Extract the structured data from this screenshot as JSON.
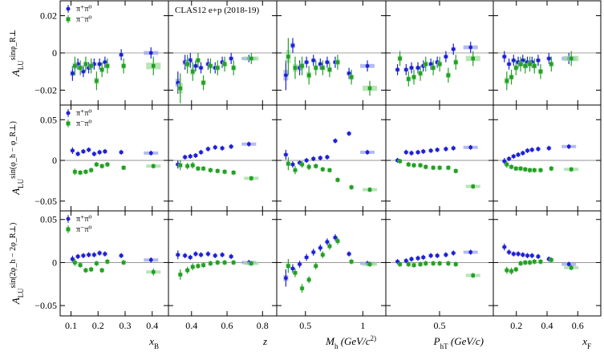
{
  "chart_data": {
    "type": "scatter",
    "title": "CLAS12 e+p (2018-19)",
    "series_names": [
      "π+π0",
      "π−π0"
    ],
    "series_colors": [
      "#1f1fd6",
      "#23a023"
    ],
    "band_colors": [
      "#9aa4ee",
      "#9fdc9f"
    ],
    "legend_labels": [
      "π⁺π⁰",
      "π⁻π⁰"
    ],
    "columns": [
      {
        "id": "xB",
        "xlabel": "x_B",
        "xlim": [
          0.06,
          0.46
        ],
        "xticks": [
          0.1,
          0.2,
          0.3,
          0.4
        ],
        "xtick_labels": [
          "0.1",
          "0.2",
          "0.3",
          "0.4"
        ]
      },
      {
        "id": "z",
        "xlabel": "z",
        "xlim": [
          0.27,
          0.88
        ],
        "xticks": [
          0.4,
          0.6,
          0.8
        ],
        "xtick_labels": [
          "0.4",
          "0.6",
          "0.8"
        ]
      },
      {
        "id": "Mh",
        "xlabel": "M_h (GeV/c^2)",
        "xlim": [
          0.25,
          1.2
        ],
        "xticks": [
          0.5,
          1.0
        ],
        "xtick_labels": [
          "0.5",
          "1"
        ]
      },
      {
        "id": "PhT",
        "xlabel": "P_hT (GeV/c)",
        "xlim": [
          0.0,
          1.0
        ],
        "xticks": [
          0.5
        ],
        "xtick_labels": [
          "0.5"
        ]
      },
      {
        "id": "xF",
        "xlabel": "x_F",
        "xlim": [
          0.05,
          0.75
        ],
        "xticks": [
          0.2,
          0.4,
          0.6
        ],
        "xtick_labels": [
          "0.2",
          "0.4",
          "0.6"
        ]
      }
    ],
    "rows": [
      {
        "id": "sin_phiR",
        "ylabel_main": "A",
        "ylabel_sub": "LU",
        "ylabel_sup": "sinφ_R⊥",
        "ylim": [
          -0.028,
          0.028
        ],
        "yticks": [
          -0.02,
          0,
          0.02
        ],
        "ytick_labels": [
          "−0.02",
          "0",
          "0.02"
        ]
      },
      {
        "id": "sin_phih_minus_phiR",
        "ylabel_main": "A",
        "ylabel_sub": "LU",
        "ylabel_sup": "sin(φ_h − φ_R⊥)",
        "ylim": [
          -0.062,
          0.068
        ],
        "yticks": [
          -0.05,
          0,
          0.05
        ],
        "ytick_labels": [
          "−0.05",
          "0",
          "0.05"
        ]
      },
      {
        "id": "sin_2phih_minus_2phiR",
        "ylabel_main": "A",
        "ylabel_sub": "LU",
        "ylabel_sup": "sin(2φ_h − 2φ_R⊥)",
        "ylim": [
          -0.062,
          0.06
        ],
        "yticks": [
          -0.05,
          0,
          0.05
        ],
        "ytick_labels": [
          "−0.05",
          "0",
          "0.05"
        ]
      }
    ],
    "panels": [
      [
        {
          "x": [
            0.11,
            0.13,
            0.15,
            0.17,
            0.19,
            0.21,
            0.23,
            0.29,
            0.4
          ],
          "s1": [
            -0.011,
            -0.006,
            -0.01,
            -0.008,
            -0.006,
            -0.006,
            -0.005,
            -0.001,
            0.0
          ],
          "e1": [
            0.004,
            0.003,
            0.003,
            0.003,
            0.003,
            0.003,
            0.003,
            0.003,
            0.003
          ],
          "s2": [
            -0.007,
            -0.008,
            -0.006,
            -0.007,
            -0.015,
            -0.009,
            -0.007,
            -0.007,
            -0.007
          ],
          "e2": [
            0.005,
            0.004,
            0.004,
            0.004,
            0.005,
            0.004,
            0.004,
            0.004,
            0.005
          ]
        },
        {
          "x": [
            0.33,
            0.37,
            0.4,
            0.43,
            0.46,
            0.5,
            0.54,
            0.58,
            0.63,
            0.73
          ],
          "s1": [
            -0.016,
            -0.005,
            -0.004,
            -0.007,
            -0.008,
            -0.006,
            -0.008,
            -0.005,
            -0.003,
            -0.003
          ],
          "e1": [
            0.006,
            0.004,
            0.004,
            0.003,
            0.003,
            0.003,
            0.003,
            0.003,
            0.003,
            0.002
          ],
          "s2": [
            -0.019,
            -0.006,
            -0.01,
            -0.004,
            -0.016,
            -0.007,
            -0.008,
            -0.006,
            -0.008,
            -0.003
          ],
          "e2": [
            0.008,
            0.005,
            0.005,
            0.004,
            0.004,
            0.004,
            0.004,
            0.004,
            0.004,
            0.003
          ]
        },
        {
          "x": [
            0.34,
            0.4,
            0.46,
            0.52,
            0.58,
            0.64,
            0.7,
            0.77,
            0.89,
            1.05
          ],
          "s1": [
            -0.012,
            0.004,
            -0.008,
            -0.005,
            -0.004,
            -0.006,
            -0.005,
            -0.005,
            -0.011,
            -0.007
          ],
          "e1": [
            0.008,
            0.004,
            0.004,
            0.003,
            0.003,
            0.003,
            0.003,
            0.003,
            0.003,
            0.003
          ],
          "s2": [
            -0.002,
            -0.008,
            -0.007,
            -0.012,
            -0.008,
            -0.008,
            -0.009,
            -0.005,
            -0.013,
            -0.019
          ],
          "e2": [
            0.01,
            0.006,
            0.005,
            0.005,
            0.004,
            0.004,
            0.004,
            0.004,
            0.004,
            0.004
          ]
        },
        {
          "x": [
            0.12,
            0.2,
            0.25,
            0.31,
            0.36,
            0.43,
            0.49,
            0.57,
            0.64,
            0.8
          ],
          "s1": [
            -0.009,
            -0.009,
            -0.008,
            -0.008,
            -0.007,
            -0.006,
            -0.005,
            -0.002,
            0.002,
            0.003
          ],
          "e1": [
            0.003,
            0.003,
            0.003,
            0.003,
            0.003,
            0.003,
            0.003,
            0.003,
            0.003,
            0.003
          ],
          "s2": [
            -0.003,
            -0.014,
            -0.013,
            -0.011,
            -0.006,
            -0.008,
            -0.006,
            -0.012,
            -0.005,
            -0.003
          ],
          "e2": [
            0.004,
            0.004,
            0.004,
            0.004,
            0.004,
            0.004,
            0.004,
            0.004,
            0.004,
            0.004
          ]
        },
        {
          "x": [
            0.13,
            0.16,
            0.19,
            0.22,
            0.25,
            0.28,
            0.31,
            0.35,
            0.42,
            0.55
          ],
          "s1": [
            -0.002,
            -0.006,
            -0.004,
            -0.005,
            -0.004,
            -0.005,
            -0.005,
            -0.004,
            -0.003,
            -0.003
          ],
          "e1": [
            0.003,
            0.003,
            0.003,
            0.003,
            0.003,
            0.003,
            0.003,
            0.003,
            0.003,
            0.003
          ],
          "s2": [
            -0.015,
            -0.013,
            -0.008,
            -0.006,
            -0.007,
            -0.006,
            -0.007,
            -0.01,
            -0.006,
            -0.003
          ],
          "e2": [
            0.005,
            0.004,
            0.004,
            0.004,
            0.004,
            0.004,
            0.004,
            0.004,
            0.004,
            0.004
          ]
        }
      ],
      [
        {
          "x": [
            0.11,
            0.13,
            0.15,
            0.17,
            0.19,
            0.21,
            0.23,
            0.29,
            0.4
          ],
          "s1": [
            0.012,
            0.008,
            0.011,
            0.013,
            0.008,
            0.01,
            0.011,
            0.01,
            0.009
          ],
          "e1": [
            0.004,
            0.003,
            0.003,
            0.003,
            0.003,
            0.003,
            0.003,
            0.003,
            0.003
          ],
          "s2": [
            -0.014,
            -0.015,
            -0.014,
            -0.012,
            -0.005,
            -0.007,
            -0.005,
            -0.009,
            -0.007
          ],
          "e2": [
            0.004,
            0.003,
            0.003,
            0.003,
            0.003,
            0.003,
            0.003,
            0.003,
            0.003
          ]
        },
        {
          "x": [
            0.33,
            0.37,
            0.4,
            0.43,
            0.46,
            0.5,
            0.54,
            0.58,
            0.63,
            0.73
          ],
          "s1": [
            -0.005,
            0.004,
            0.005,
            0.006,
            0.01,
            0.014,
            0.016,
            0.015,
            0.017,
            0.02
          ],
          "e1": [
            0.005,
            0.003,
            0.003,
            0.003,
            0.003,
            0.003,
            0.003,
            0.003,
            0.003,
            0.003
          ],
          "s2": [
            -0.006,
            -0.007,
            -0.006,
            -0.01,
            -0.01,
            -0.012,
            -0.013,
            -0.014,
            -0.015,
            -0.022
          ],
          "e2": [
            0.006,
            0.004,
            0.004,
            0.003,
            0.003,
            0.003,
            0.003,
            0.003,
            0.003,
            0.003
          ]
        },
        {
          "x": [
            0.34,
            0.4,
            0.46,
            0.52,
            0.58,
            0.64,
            0.7,
            0.77,
            0.89,
            1.05
          ],
          "s1": [
            0.007,
            -0.005,
            -0.003,
            0.0,
            0.002,
            0.003,
            0.004,
            0.024,
            0.033,
            0.01
          ],
          "e1": [
            0.006,
            0.004,
            0.003,
            0.003,
            0.003,
            0.003,
            0.003,
            0.003,
            0.003,
            0.003
          ],
          "s2": [
            -0.004,
            -0.012,
            -0.005,
            -0.008,
            -0.007,
            -0.011,
            -0.012,
            -0.024,
            -0.033,
            -0.036
          ],
          "e2": [
            0.008,
            0.005,
            0.004,
            0.004,
            0.003,
            0.003,
            0.003,
            0.003,
            0.003,
            0.003
          ]
        },
        {
          "x": [
            0.12,
            0.2,
            0.25,
            0.31,
            0.36,
            0.43,
            0.49,
            0.57,
            0.64,
            0.8
          ],
          "s1": [
            0.0,
            0.01,
            0.009,
            0.01,
            0.011,
            0.012,
            0.013,
            0.014,
            0.015,
            0.016
          ],
          "e1": [
            0.003,
            0.003,
            0.003,
            0.003,
            0.003,
            0.003,
            0.003,
            0.003,
            0.003,
            0.003
          ],
          "s2": [
            -0.001,
            -0.005,
            -0.006,
            -0.006,
            -0.008,
            -0.009,
            -0.009,
            -0.009,
            -0.013,
            -0.032
          ],
          "e2": [
            0.003,
            0.003,
            0.003,
            0.003,
            0.003,
            0.003,
            0.003,
            0.003,
            0.003,
            0.003
          ]
        },
        {
          "x": [
            0.13,
            0.16,
            0.19,
            0.22,
            0.25,
            0.28,
            0.31,
            0.35,
            0.42,
            0.55
          ],
          "s1": [
            -0.001,
            0.002,
            0.005,
            0.007,
            0.009,
            0.012,
            0.013,
            0.014,
            0.015,
            0.017
          ],
          "e1": [
            0.004,
            0.003,
            0.003,
            0.003,
            0.003,
            0.003,
            0.003,
            0.003,
            0.003,
            0.003
          ],
          "s2": [
            -0.005,
            -0.008,
            -0.01,
            -0.01,
            -0.011,
            -0.012,
            -0.012,
            -0.012,
            -0.01,
            -0.011
          ],
          "e2": [
            0.004,
            0.003,
            0.003,
            0.003,
            0.003,
            0.003,
            0.003,
            0.003,
            0.003,
            0.003
          ]
        }
      ],
      [
        {
          "x": [
            0.11,
            0.13,
            0.15,
            0.17,
            0.19,
            0.21,
            0.23,
            0.29,
            0.4
          ],
          "s1": [
            0.004,
            0.007,
            0.008,
            0.009,
            0.009,
            0.011,
            0.01,
            0.008,
            0.003
          ],
          "e1": [
            0.004,
            0.003,
            0.003,
            0.003,
            0.003,
            0.003,
            0.003,
            0.003,
            0.003
          ],
          "s2": [
            0.0,
            -0.003,
            -0.009,
            -0.008,
            -0.001,
            -0.009,
            0.001,
            0.0,
            -0.011
          ],
          "e2": [
            0.004,
            0.003,
            0.003,
            0.003,
            0.003,
            0.003,
            0.003,
            0.003,
            0.004
          ]
        },
        {
          "x": [
            0.33,
            0.37,
            0.4,
            0.43,
            0.46,
            0.5,
            0.54,
            0.58,
            0.63,
            0.73
          ],
          "s1": [
            0.009,
            0.008,
            0.006,
            0.01,
            0.009,
            0.01,
            0.008,
            0.009,
            0.007,
            0.0
          ],
          "e1": [
            0.005,
            0.003,
            0.003,
            0.003,
            0.003,
            0.003,
            0.003,
            0.003,
            0.003,
            0.003
          ],
          "s2": [
            -0.014,
            -0.009,
            -0.005,
            -0.004,
            -0.003,
            -0.001,
            0.0,
            0.0,
            0.0,
            -0.001
          ],
          "e2": [
            0.006,
            0.004,
            0.004,
            0.003,
            0.003,
            0.003,
            0.003,
            0.003,
            0.003,
            0.003
          ]
        },
        {
          "x": [
            0.34,
            0.4,
            0.46,
            0.52,
            0.58,
            0.64,
            0.7,
            0.77,
            0.89,
            1.05
          ],
          "s1": [
            -0.018,
            -0.007,
            -0.002,
            0.006,
            0.012,
            0.017,
            0.024,
            0.029,
            0.01,
            -0.001
          ],
          "e1": [
            0.01,
            0.005,
            0.004,
            0.004,
            0.004,
            0.004,
            0.004,
            0.004,
            0.003,
            0.003
          ],
          "s2": [
            -0.004,
            -0.012,
            -0.03,
            -0.02,
            -0.004,
            0.009,
            0.019,
            0.025,
            0.001,
            -0.002
          ],
          "e2": [
            0.008,
            0.005,
            0.005,
            0.004,
            0.004,
            0.004,
            0.004,
            0.004,
            0.003,
            0.003
          ]
        },
        {
          "x": [
            0.12,
            0.2,
            0.25,
            0.31,
            0.36,
            0.43,
            0.49,
            0.57,
            0.64,
            0.8
          ],
          "s1": [
            0.001,
            0.002,
            0.004,
            0.005,
            0.006,
            0.008,
            0.008,
            0.009,
            0.011,
            0.012
          ],
          "e1": [
            0.003,
            0.003,
            0.003,
            0.003,
            0.003,
            0.003,
            0.003,
            0.003,
            0.003,
            0.003
          ],
          "s2": [
            -0.002,
            -0.002,
            -0.003,
            -0.002,
            -0.001,
            -0.001,
            -0.001,
            -0.001,
            -0.002,
            -0.015
          ],
          "e2": [
            0.003,
            0.003,
            0.003,
            0.003,
            0.003,
            0.003,
            0.003,
            0.003,
            0.003,
            0.003
          ]
        },
        {
          "x": [
            0.13,
            0.16,
            0.19,
            0.22,
            0.25,
            0.28,
            0.31,
            0.35,
            0.42,
            0.55
          ],
          "s1": [
            0.018,
            0.012,
            0.01,
            0.01,
            0.009,
            0.008,
            0.008,
            0.007,
            0.004,
            -0.002
          ],
          "e1": [
            0.004,
            0.003,
            0.003,
            0.003,
            0.003,
            0.003,
            0.003,
            0.003,
            0.003,
            0.003
          ],
          "s2": [
            -0.009,
            -0.01,
            -0.008,
            -0.001,
            0.0,
            0.0,
            0.001,
            0.001,
            0.003,
            -0.006
          ],
          "e2": [
            0.004,
            0.004,
            0.003,
            0.003,
            0.003,
            0.003,
            0.003,
            0.003,
            0.003,
            0.003
          ]
        }
      ]
    ]
  }
}
